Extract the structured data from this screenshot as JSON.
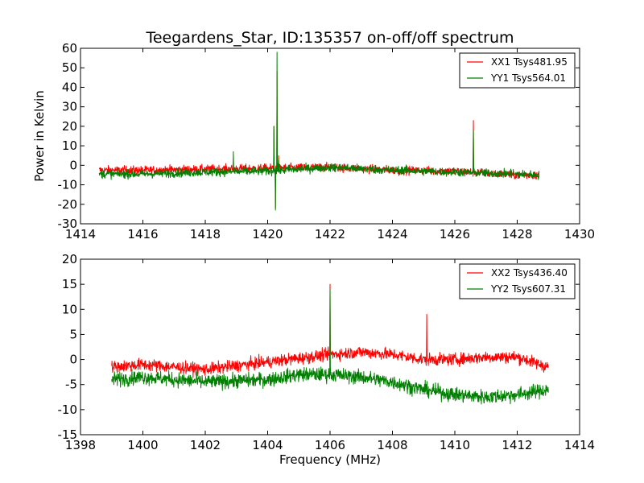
{
  "figure": {
    "title": "Teegardens_Star, ID:135357 on-off/off spectrum",
    "ylabel": "Power in Kelvin",
    "xlabel": "Frequency (MHz)"
  },
  "colors": {
    "xx": "#ff0000",
    "yy": "#008000",
    "axis": "#000000",
    "background": "#ffffff"
  },
  "chart_data": [
    {
      "type": "line",
      "xlim": [
        1414,
        1430
      ],
      "ylim": [
        -30,
        60
      ],
      "xticks": [
        1414,
        1416,
        1418,
        1420,
        1422,
        1424,
        1426,
        1428,
        1430
      ],
      "yticks": [
        -30,
        -20,
        -10,
        0,
        10,
        20,
        30,
        40,
        50,
        60
      ],
      "grid": false,
      "legend_position": "top-right",
      "series": [
        {
          "name": "XX1 Tsys481.95",
          "color": "#ff0000",
          "x_range": [
            1414.6,
            1428.7
          ],
          "noise": 1.8,
          "baseline": [
            [
              1414.6,
              -2.5
            ],
            [
              1416,
              -2.5
            ],
            [
              1418,
              -2
            ],
            [
              1420,
              -1.5
            ],
            [
              1422,
              -1
            ],
            [
              1424,
              -2.5
            ],
            [
              1426,
              -3
            ],
            [
              1428,
              -5
            ],
            [
              1428.7,
              -5
            ]
          ],
          "spikes": [
            {
              "x": 1420.2,
              "y": 20
            },
            {
              "x": 1420.25,
              "y": -22
            },
            {
              "x": 1420.3,
              "y": 48
            },
            {
              "x": 1420.35,
              "y": 5
            },
            {
              "x": 1426.6,
              "y": 23
            }
          ]
        },
        {
          "name": "YY1 Tsys564.01",
          "color": "#008000",
          "x_range": [
            1414.6,
            1428.7
          ],
          "noise": 1.8,
          "baseline": [
            [
              1414.6,
              -4.5
            ],
            [
              1416,
              -4.5
            ],
            [
              1418,
              -3.5
            ],
            [
              1420,
              -3
            ],
            [
              1422,
              -1
            ],
            [
              1424,
              -2.5
            ],
            [
              1426,
              -3.5
            ],
            [
              1428,
              -4.5
            ],
            [
              1428.7,
              -5
            ]
          ],
          "spikes": [
            {
              "x": 1418.9,
              "y": 7
            },
            {
              "x": 1420.2,
              "y": 20
            },
            {
              "x": 1420.25,
              "y": -23
            },
            {
              "x": 1420.3,
              "y": 58
            },
            {
              "x": 1420.35,
              "y": 3
            },
            {
              "x": 1426.6,
              "y": 18
            }
          ]
        }
      ]
    },
    {
      "type": "line",
      "xlim": [
        1398,
        1414
      ],
      "ylim": [
        -15,
        20
      ],
      "xticks": [
        1398,
        1400,
        1402,
        1404,
        1406,
        1408,
        1410,
        1412,
        1414
      ],
      "yticks": [
        -15,
        -10,
        -5,
        0,
        5,
        10,
        15,
        20
      ],
      "grid": false,
      "legend_position": "top-right",
      "series": [
        {
          "name": "XX2 Tsys436.40",
          "color": "#ff0000",
          "x_range": [
            1399,
            1413
          ],
          "noise": 1.0,
          "baseline": [
            [
              1399,
              -1.5
            ],
            [
              1400,
              -1
            ],
            [
              1402,
              -2
            ],
            [
              1404,
              -0.5
            ],
            [
              1406,
              1
            ],
            [
              1407,
              1.5
            ],
            [
              1408,
              1
            ],
            [
              1409,
              0
            ],
            [
              1410,
              0
            ],
            [
              1411,
              0.5
            ],
            [
              1412,
              0.5
            ],
            [
              1413,
              -1.5
            ]
          ],
          "spikes": [
            {
              "x": 1406.0,
              "y": 15
            },
            {
              "x": 1409.1,
              "y": 9
            }
          ]
        },
        {
          "name": "YY2 Tsys607.31",
          "color": "#008000",
          "x_range": [
            1399,
            1413
          ],
          "noise": 1.2,
          "baseline": [
            [
              1399,
              -4
            ],
            [
              1400,
              -3.5
            ],
            [
              1401,
              -4
            ],
            [
              1402,
              -4.5
            ],
            [
              1404,
              -4
            ],
            [
              1405,
              -3
            ],
            [
              1406,
              -3
            ],
            [
              1407,
              -3.5
            ],
            [
              1408,
              -4.5
            ],
            [
              1409,
              -6
            ],
            [
              1410,
              -7
            ],
            [
              1411,
              -7.5
            ],
            [
              1412,
              -7
            ],
            [
              1413,
              -6
            ]
          ],
          "spikes": [
            {
              "x": 1406.0,
              "y": 14
            }
          ]
        }
      ]
    }
  ]
}
